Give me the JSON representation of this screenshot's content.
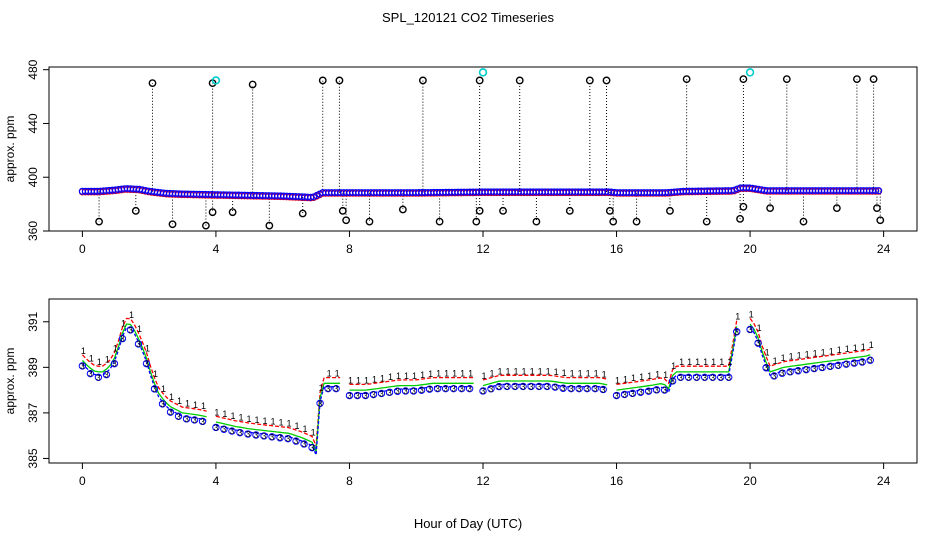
{
  "chart_data": {
    "title": "SPL_120121  CO2 Timeseries",
    "xlabel": "Hour of Day (UTC)",
    "colors": {
      "black": "#000000",
      "blue": "#0000ff",
      "red": "#ff0000",
      "green": "#00cc00",
      "cyan": "#00cccc"
    },
    "panels": [
      {
        "type": "scatter",
        "ylabel": "approx. ppm",
        "xlim": [
          -1.0,
          25.0
        ],
        "ylim": [
          360,
          482
        ],
        "xticks": [
          0,
          4,
          8,
          12,
          16,
          20,
          24
        ],
        "yticks": [
          360,
          400,
          440,
          480
        ],
        "baseline_pts": [
          [
            0.0,
            389.5
          ],
          [
            0.5,
            389.5
          ],
          [
            1.0,
            390.5
          ],
          [
            1.3,
            391.5
          ],
          [
            1.7,
            391.0
          ],
          [
            2.0,
            389.5
          ],
          [
            2.5,
            388.0
          ],
          [
            3.0,
            387.5
          ],
          [
            4.0,
            387.0
          ],
          [
            5.0,
            386.5
          ],
          [
            6.0,
            386.0
          ],
          [
            6.9,
            385.0
          ],
          [
            7.2,
            388.5
          ],
          [
            8.0,
            388.5
          ],
          [
            10.0,
            388.5
          ],
          [
            12.0,
            389.0
          ],
          [
            14.0,
            389.0
          ],
          [
            15.8,
            389.0
          ],
          [
            16.0,
            388.5
          ],
          [
            17.5,
            388.5
          ],
          [
            18.0,
            389.5
          ],
          [
            19.5,
            390.0
          ],
          [
            19.7,
            392.0
          ],
          [
            20.0,
            392.0
          ],
          [
            20.5,
            390.0
          ],
          [
            21.0,
            390.0
          ],
          [
            22.0,
            390.0
          ],
          [
            24.0,
            390.0
          ]
        ],
        "spikes": [
          [
            0.5,
            367
          ],
          [
            1.6,
            375
          ],
          [
            2.1,
            470
          ],
          [
            2.7,
            365
          ],
          [
            3.7,
            364
          ],
          [
            3.9,
            470
          ],
          [
            3.9,
            374
          ],
          [
            4.5,
            374
          ],
          [
            5.1,
            469
          ],
          [
            5.6,
            364
          ],
          [
            6.6,
            373
          ],
          [
            7.2,
            472
          ],
          [
            7.7,
            472
          ],
          [
            7.8,
            375
          ],
          [
            7.9,
            368
          ],
          [
            8.6,
            367
          ],
          [
            9.6,
            376
          ],
          [
            10.2,
            472
          ],
          [
            10.7,
            367
          ],
          [
            11.8,
            367
          ],
          [
            11.9,
            472
          ],
          [
            11.9,
            375
          ],
          [
            12.6,
            375
          ],
          [
            13.1,
            472
          ],
          [
            13.6,
            367
          ],
          [
            14.6,
            375
          ],
          [
            15.2,
            472
          ],
          [
            15.7,
            472
          ],
          [
            15.8,
            375
          ],
          [
            15.9,
            367
          ],
          [
            16.6,
            367
          ],
          [
            17.6,
            375
          ],
          [
            18.1,
            473
          ],
          [
            18.7,
            367
          ],
          [
            19.7,
            369
          ],
          [
            19.8,
            473
          ],
          [
            19.8,
            378
          ],
          [
            20.6,
            377
          ],
          [
            21.1,
            473
          ],
          [
            21.6,
            367
          ],
          [
            22.6,
            377
          ],
          [
            23.2,
            473
          ],
          [
            23.7,
            473
          ],
          [
            23.8,
            377
          ],
          [
            23.9,
            368
          ]
        ],
        "cyan_points": [
          [
            4.0,
            472
          ],
          [
            12.0,
            478
          ],
          [
            20.0,
            478
          ]
        ]
      },
      {
        "type": "line",
        "ylabel": "approx. ppm",
        "xlim": [
          -1.0,
          25.0
        ],
        "ylim": [
          384.8,
          392.0
        ],
        "xticks": [
          0,
          4,
          8,
          12,
          16,
          20,
          24
        ],
        "yticks": [
          385,
          387,
          389,
          391
        ],
        "series_labels": [
          "1",
          "2",
          "3"
        ],
        "segments": [
          [
            [
              0.0,
              389.3
            ],
            [
              0.2,
              389.0
            ],
            [
              0.4,
              388.8
            ],
            [
              0.6,
              388.8
            ],
            [
              0.8,
              389.0
            ],
            [
              1.0,
              389.5
            ],
            [
              1.2,
              390.5
            ],
            [
              1.35,
              391.0
            ],
            [
              1.5,
              390.8
            ],
            [
              1.7,
              390.2
            ],
            [
              1.9,
              389.5
            ],
            [
              2.1,
              388.5
            ],
            [
              2.3,
              387.8
            ],
            [
              2.6,
              387.3
            ],
            [
              3.0,
              387.0
            ],
            [
              3.5,
              386.9
            ],
            [
              3.8,
              386.8
            ]
          ],
          [
            [
              4.0,
              386.6
            ],
            [
              4.6,
              386.4
            ],
            [
              5.0,
              386.3
            ],
            [
              5.6,
              386.2
            ],
            [
              6.2,
              386.1
            ],
            [
              6.6,
              385.9
            ],
            [
              6.9,
              385.7
            ],
            [
              7.0,
              385.3
            ],
            [
              7.1,
              387.5
            ],
            [
              7.2,
              388.3
            ],
            [
              7.4,
              388.3
            ],
            [
              7.8,
              388.3
            ]
          ],
          [
            [
              8.0,
              388.0
            ],
            [
              8.5,
              388.0
            ],
            [
              9.0,
              388.1
            ],
            [
              9.5,
              388.2
            ],
            [
              10.0,
              388.2
            ],
            [
              10.5,
              388.3
            ],
            [
              11.0,
              388.3
            ],
            [
              11.5,
              388.3
            ],
            [
              11.8,
              388.3
            ]
          ],
          [
            [
              12.0,
              388.2
            ],
            [
              12.5,
              388.4
            ],
            [
              13.0,
              388.4
            ],
            [
              13.5,
              388.4
            ],
            [
              14.0,
              388.4
            ],
            [
              14.5,
              388.3
            ],
            [
              15.0,
              388.3
            ],
            [
              15.5,
              388.3
            ],
            [
              15.8,
              388.2
            ]
          ],
          [
            [
              16.0,
              388.0
            ],
            [
              16.5,
              388.1
            ],
            [
              17.0,
              388.2
            ],
            [
              17.4,
              388.3
            ],
            [
              17.6,
              388.0
            ],
            [
              17.7,
              388.8
            ],
            [
              18.0,
              388.8
            ],
            [
              18.5,
              388.8
            ],
            [
              19.0,
              388.8
            ],
            [
              19.4,
              388.8
            ],
            [
              19.5,
              390.0
            ],
            [
              19.6,
              390.8
            ],
            [
              19.7,
              391.3
            ]
          ],
          [
            [
              20.0,
              390.9
            ],
            [
              20.2,
              390.5
            ],
            [
              20.4,
              389.5
            ],
            [
              20.6,
              388.8
            ],
            [
              21.0,
              389.0
            ],
            [
              21.5,
              389.1
            ],
            [
              22.0,
              389.2
            ],
            [
              22.5,
              389.3
            ],
            [
              23.0,
              389.4
            ],
            [
              23.5,
              389.5
            ],
            [
              23.7,
              389.6
            ]
          ]
        ],
        "offsets": [
          0.25,
          0.0,
          -0.15
        ]
      }
    ]
  }
}
